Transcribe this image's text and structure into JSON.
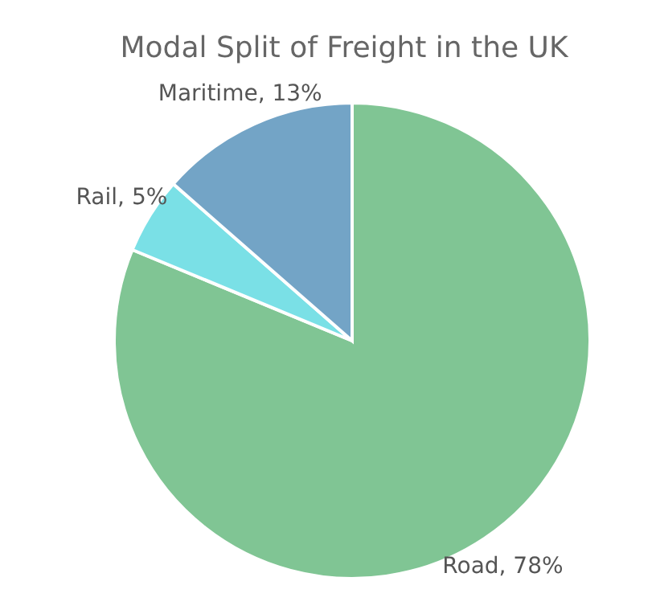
{
  "chart_data": {
    "type": "pie",
    "title": "Modal Split of Freight in the UK",
    "categories": [
      "Road",
      "Rail",
      "Maritime"
    ],
    "values": [
      78,
      5,
      13
    ],
    "colors": [
      "#80c594",
      "#7ae0e6",
      "#73a4c6"
    ],
    "value_labels": [
      "78%",
      "5%",
      "13%"
    ],
    "legend": false
  }
}
